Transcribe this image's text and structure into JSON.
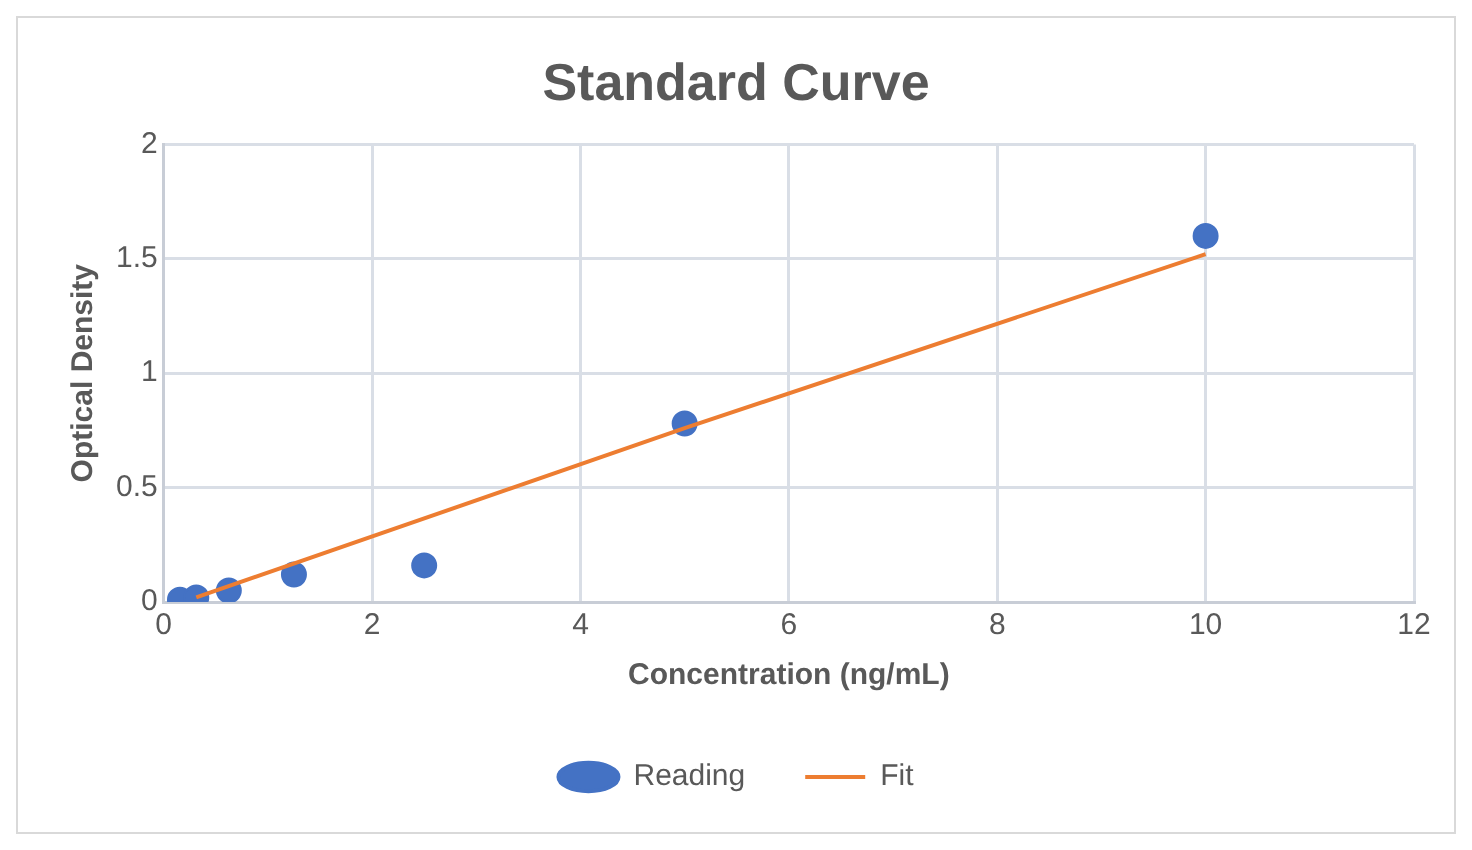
{
  "chart_data": {
    "type": "scatter",
    "title": "Standard Curve",
    "xlabel": "Concentration (ng/mL)",
    "ylabel": "Optical Density",
    "xlim": [
      0,
      12
    ],
    "xticks": [
      0,
      2,
      4,
      6,
      8,
      10,
      12
    ],
    "ylim": [
      0,
      2
    ],
    "yticks": [
      0,
      0.5,
      1,
      1.5,
      2
    ],
    "grid": true,
    "legend": "bottom",
    "marker": "circle",
    "series": [
      {
        "name": "Reading",
        "type": "scatter",
        "color": "#4472c4",
        "x": [
          0.156,
          0.3125,
          0.625,
          1.25,
          2.5,
          5,
          10
        ],
        "values": [
          0.01,
          0.02,
          0.05,
          0.12,
          0.16,
          0.78,
          1.6
        ]
      },
      {
        "name": "Fit",
        "type": "line",
        "color": "#ed7d31",
        "marker": "none",
        "line_style": "solid",
        "x": [
          0.3125,
          5,
          10
        ],
        "values": [
          0.02,
          0.76,
          1.52
        ]
      }
    ]
  }
}
